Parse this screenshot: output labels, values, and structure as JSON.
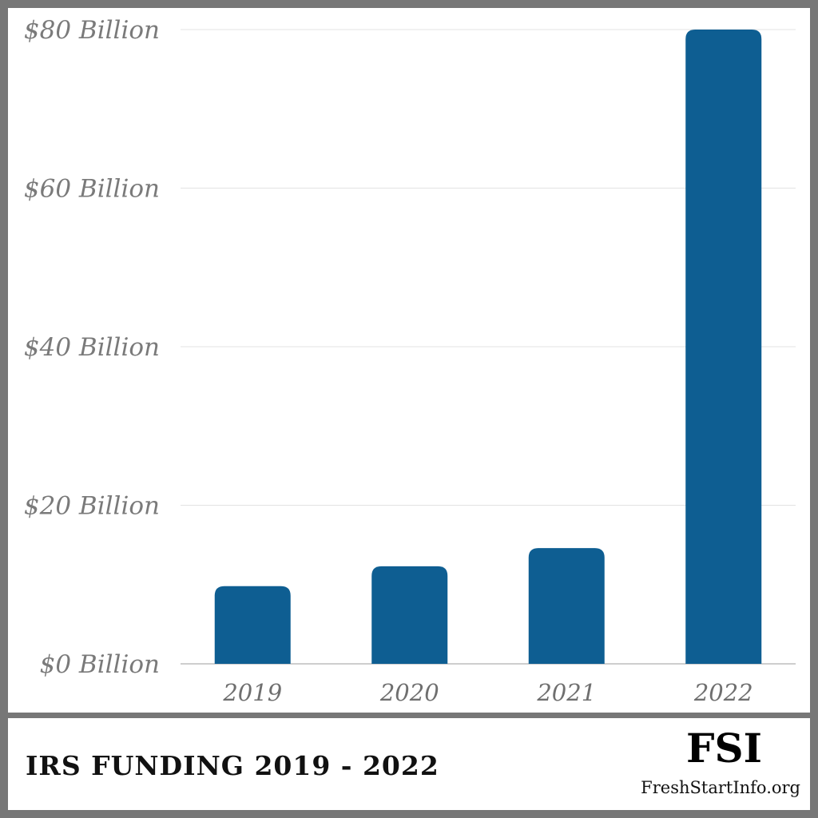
{
  "chart_data": {
    "type": "bar",
    "categories": [
      "2019",
      "2020",
      "2021",
      "2022"
    ],
    "values": [
      9.8,
      12.3,
      14.6,
      80
    ],
    "ylim": [
      0,
      80
    ],
    "yticks": [
      0,
      20,
      40,
      60,
      80
    ],
    "ytick_labels": [
      "$0 Billion",
      "$20 Billion",
      "$40 Billion",
      "$60 Billion",
      "$80 Billion"
    ],
    "grid": true,
    "bar_color": "#0e5e92",
    "gridline_color": "#e3e3e3"
  },
  "footer": {
    "title": "IRS FUNDING 2019 - 2022",
    "brand_logo": "FSI",
    "brand_url": "FreshStartInfo.org"
  },
  "colors": {
    "frame": "#777777",
    "panel": "#ffffff"
  }
}
